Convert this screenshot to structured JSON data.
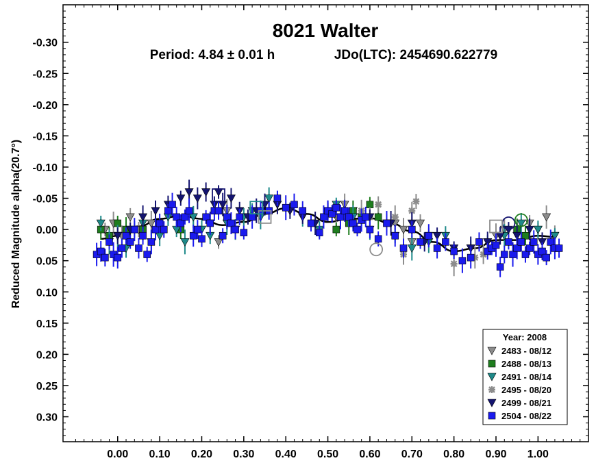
{
  "chart_data": {
    "type": "scatter",
    "title": "8021 Walter",
    "subtitle_left": "Period: 4.84 ± 0.01 h",
    "subtitle_right": "JDo(LTC): 2454690.622779",
    "xlabel": "",
    "ylabel": "Reduced Magnitude alpha(20.7°)",
    "xlim": [
      -0.13,
      1.12
    ],
    "ylim": [
      -0.36,
      0.34
    ],
    "y_inverted": true,
    "grid": false,
    "legend_position": "bottom-right",
    "x_ticks": [
      0.0,
      0.1,
      0.2,
      0.3,
      0.4,
      0.5,
      0.6,
      0.7,
      0.8,
      0.9,
      1.0
    ],
    "x_tick_labels": [
      "0.00",
      "0.10",
      "0.20",
      "0.30",
      "0.40",
      "0.50",
      "0.60",
      "0.70",
      "0.80",
      "0.90",
      "1.00"
    ],
    "y_ticks": [
      -0.3,
      -0.25,
      -0.2,
      -0.15,
      -0.1,
      -0.05,
      0.0,
      0.05,
      0.1,
      0.15,
      0.2,
      0.25,
      0.3
    ],
    "y_tick_labels": [
      "-0.30",
      "-0.25",
      "-0.20",
      "-0.15",
      "-0.10",
      "-0.05",
      "0.00",
      "0.05",
      "0.10",
      "0.15",
      "0.20",
      "0.25",
      "0.30"
    ],
    "legend_title": "Year: 2008",
    "fit_curve": {
      "x": [
        -0.04,
        0.0,
        0.05,
        0.1,
        0.15,
        0.2,
        0.25,
        0.3,
        0.35,
        0.4,
        0.45,
        0.5,
        0.55,
        0.6,
        0.65,
        0.7,
        0.75,
        0.8,
        0.85,
        0.9,
        0.95,
        1.0,
        1.04
      ],
      "y": [
        0.015,
        0.01,
        -0.005,
        -0.017,
        -0.022,
        -0.017,
        -0.007,
        -0.012,
        -0.025,
        -0.034,
        -0.025,
        -0.012,
        -0.017,
        -0.018,
        -0.01,
        0.003,
        0.02,
        0.035,
        0.03,
        0.017,
        0.017,
        0.01,
        0.012
      ]
    },
    "series": [
      {
        "name": "2483 - 08/12",
        "color": "#8c8c8c",
        "marker": "triangle-down",
        "x": [
          -0.03,
          -0.01,
          0.01,
          0.03,
          0.05,
          0.08,
          0.18,
          0.2,
          0.22,
          0.24,
          0.26,
          0.28,
          0.3,
          0.5,
          0.52,
          0.54,
          0.56,
          0.58,
          0.66,
          0.68,
          0.7,
          0.72,
          0.74,
          0.9,
          0.92,
          0.96,
          0.98,
          1.0,
          1.02,
          1.04
        ],
        "y": [
          0.0,
          -0.01,
          0.01,
          -0.02,
          0.0,
          -0.01,
          -0.02,
          0.0,
          -0.01,
          0.02,
          -0.03,
          0.0,
          -0.02,
          -0.03,
          -0.02,
          -0.04,
          -0.03,
          -0.02,
          -0.01,
          0.0,
          0.02,
          -0.01,
          0.01,
          0.01,
          0.0,
          0.02,
          -0.01,
          0.0,
          -0.02,
          0.01
        ]
      },
      {
        "name": "2488 - 08/13",
        "color": "#1e7d1e",
        "marker": "square",
        "x": [
          -0.04,
          -0.02,
          0.0,
          0.02,
          0.06,
          0.15,
          0.5,
          0.52,
          0.55,
          0.56,
          0.58,
          0.6,
          0.62,
          0.95,
          0.97
        ],
        "y": [
          0.0,
          0.01,
          -0.01,
          0.0,
          0.0,
          0.0,
          -0.03,
          0.0,
          -0.01,
          -0.03,
          -0.02,
          -0.04,
          -0.02,
          0.0,
          0.01
        ]
      },
      {
        "name": "2491 - 08/14",
        "color": "#1e8a8a",
        "marker": "triangle-down",
        "x": [
          -0.04,
          -0.02,
          0.0,
          0.02,
          0.04,
          0.06,
          0.08,
          0.1,
          0.12,
          0.14,
          0.16,
          0.18,
          0.2,
          0.22,
          0.24,
          0.26,
          0.28,
          0.3,
          0.32,
          0.34,
          0.36,
          0.44,
          0.48,
          0.52,
          0.56,
          0.6,
          0.64,
          0.66,
          0.7,
          0.74,
          0.78,
          0.84,
          0.88,
          0.92,
          0.96,
          1.0,
          1.04
        ],
        "y": [
          -0.01,
          0.02,
          0.01,
          0.03,
          0.0,
          -0.01,
          0.02,
          0.01,
          -0.02,
          0.0,
          0.02,
          -0.02,
          0.0,
          0.01,
          -0.03,
          -0.01,
          0.0,
          -0.02,
          -0.03,
          -0.02,
          -0.05,
          -0.02,
          0.0,
          -0.04,
          -0.02,
          0.0,
          -0.01,
          0.01,
          0.03,
          0.02,
          0.01,
          0.03,
          0.02,
          0.01,
          -0.01,
          0.0,
          0.01
        ]
      },
      {
        "name": "2495 - 08/20",
        "color": "#8c8c8c",
        "marker": "asterisk",
        "x": [
          0.58,
          0.6,
          0.62,
          0.64,
          0.66,
          0.68,
          0.7,
          0.71,
          0.8,
          0.85,
          0.87
        ],
        "y": [
          -0.03,
          -0.02,
          -0.04,
          -0.01,
          -0.02,
          0.04,
          -0.03,
          -0.045,
          0.055,
          0.045,
          0.04
        ]
      },
      {
        "name": "2499 - 08/21",
        "color": "#141470",
        "marker": "triangle-down",
        "x": [
          0.0,
          0.03,
          0.06,
          0.09,
          0.12,
          0.15,
          0.17,
          0.19,
          0.21,
          0.23,
          0.24,
          0.25,
          0.27,
          0.29,
          0.31,
          0.33,
          0.35,
          0.38,
          0.41,
          0.44,
          0.47,
          0.5,
          0.53,
          0.6,
          0.65,
          0.7,
          0.73,
          0.76,
          0.8,
          0.84,
          0.88,
          0.91,
          0.93,
          0.95,
          0.98,
          1.01
        ],
        "y": [
          0.01,
          0.0,
          -0.02,
          -0.03,
          -0.04,
          -0.05,
          -0.06,
          -0.05,
          -0.06,
          -0.04,
          -0.06,
          -0.04,
          -0.05,
          -0.03,
          -0.02,
          -0.03,
          -0.04,
          -0.04,
          -0.03,
          -0.02,
          -0.01,
          -0.03,
          -0.02,
          -0.02,
          -0.01,
          -0.01,
          0.02,
          0.01,
          0.03,
          0.03,
          0.02,
          0.01,
          0.0,
          0.01,
          0.0,
          0.02
        ]
      },
      {
        "name": "2504 - 08/22",
        "color": "#1a1aee",
        "marker": "square",
        "x": [
          -0.05,
          -0.04,
          -0.03,
          -0.02,
          -0.01,
          0.0,
          0.01,
          0.02,
          0.03,
          0.04,
          0.05,
          0.06,
          0.07,
          0.08,
          0.09,
          0.1,
          0.11,
          0.12,
          0.13,
          0.14,
          0.15,
          0.16,
          0.17,
          0.18,
          0.19,
          0.2,
          0.21,
          0.22,
          0.23,
          0.24,
          0.25,
          0.26,
          0.27,
          0.28,
          0.29,
          0.3,
          0.32,
          0.34,
          0.36,
          0.38,
          0.4,
          0.42,
          0.44,
          0.46,
          0.48,
          0.49,
          0.5,
          0.51,
          0.52,
          0.53,
          0.54,
          0.55,
          0.56,
          0.57,
          0.58,
          0.59,
          0.6,
          0.62,
          0.64,
          0.66,
          0.68,
          0.7,
          0.72,
          0.74,
          0.76,
          0.78,
          0.8,
          0.82,
          0.84,
          0.86,
          0.88,
          0.89,
          0.9,
          0.91,
          0.92,
          0.93,
          0.94,
          0.95,
          0.96,
          0.97,
          0.98,
          0.99,
          1.0,
          1.01,
          1.02,
          1.03,
          1.04,
          1.05
        ],
        "y": [
          0.04,
          0.035,
          0.045,
          0.02,
          0.04,
          0.045,
          0.03,
          0.01,
          0.02,
          0.0,
          0.03,
          0.01,
          0.04,
          0.02,
          0.0,
          -0.01,
          0.0,
          -0.03,
          -0.04,
          -0.02,
          -0.01,
          -0.02,
          -0.03,
          0.01,
          0.0,
          0.015,
          -0.02,
          -0.01,
          -0.03,
          -0.03,
          0.01,
          -0.02,
          -0.01,
          0.0,
          -0.02,
          0.005,
          -0.02,
          -0.03,
          -0.03,
          -0.05,
          -0.035,
          -0.04,
          -0.03,
          -0.01,
          0.005,
          -0.02,
          -0.03,
          -0.025,
          -0.035,
          -0.02,
          -0.03,
          -0.02,
          -0.01,
          0.0,
          -0.015,
          -0.02,
          0.0,
          0.015,
          -0.01,
          0.01,
          0.03,
          0.0,
          0.02,
          0.01,
          0.03,
          0.02,
          0.035,
          0.05,
          0.045,
          0.02,
          0.035,
          0.03,
          0.025,
          0.06,
          0.04,
          0.02,
          0.04,
          0.03,
          0.02,
          0.04,
          0.03,
          0.02,
          0.04,
          0.035,
          0.045,
          0.02,
          0.03,
          0.03
        ]
      }
    ],
    "highlight_markers": [
      {
        "shape": "square-open",
        "color": "#141470",
        "x": 0.24,
        "y": -0.055
      },
      {
        "shape": "square-open",
        "color": "#8c8c8c",
        "x": 0.35,
        "y": -0.02
      },
      {
        "shape": "square-open",
        "color": "#1e8a8a",
        "x": 0.33,
        "y": -0.035
      },
      {
        "shape": "circle-open",
        "color": "#8c8c8c",
        "x": 0.615,
        "y": 0.032
      },
      {
        "shape": "circle-open",
        "color": "#141470",
        "x": 0.93,
        "y": -0.01
      },
      {
        "shape": "circle-open",
        "color": "#1e7d1e",
        "x": 0.96,
        "y": -0.015
      },
      {
        "shape": "square-open",
        "color": "#8c8c8c",
        "x": 0.9,
        "y": -0.005
      }
    ]
  }
}
